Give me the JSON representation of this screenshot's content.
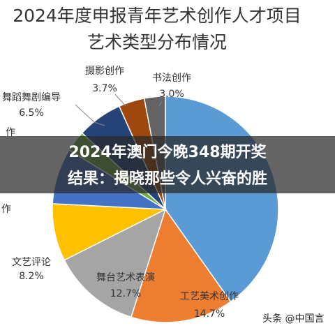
{
  "chart_data": {
    "type": "pie",
    "title": [
      "2024年度申报青年艺术创作人才项目",
      "艺术类型分布情况"
    ],
    "categories": [
      null,
      "工艺美术创作",
      "舞台艺术表演",
      "文艺评论",
      "作",
      "作",
      "舞蹈舞剧编导",
      "摄影创作",
      "书法创作"
    ],
    "values": [
      40.2,
      14.7,
      12.7,
      8.2,
      8.0,
      3.0,
      6.5,
      3.7,
      3.0
    ],
    "value_labels": [
      null,
      "14.7%",
      "12.7%",
      "8.2%",
      null,
      null,
      "6.5%",
      "3.7%",
      "3.0%"
    ],
    "colors": [
      "#5b9bd5",
      "#ed7d31",
      "#a5a5a5",
      "#ffc000",
      "#4472c4",
      "#70ad47",
      "#264478",
      "#9e480e",
      "#636363"
    ]
  },
  "banner": [
    "2024年澳门今晚348期开奖",
    "结果：揭晓那些令人兴奋的胜"
  ],
  "watermark": "头条 @中国言"
}
